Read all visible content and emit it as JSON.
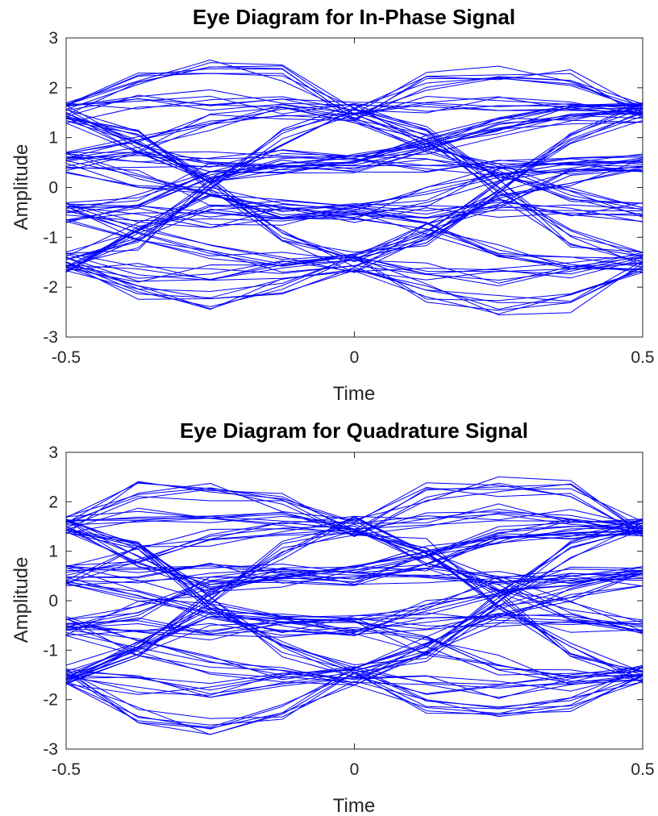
{
  "chart_data": [
    {
      "type": "line",
      "title": "Eye Diagram for In-Phase Signal",
      "xlabel": "Time",
      "ylabel": "Amplitude",
      "xlim": [
        -0.5,
        0.5
      ],
      "ylim": [
        -3,
        3
      ],
      "xticks": [
        -0.5,
        0,
        0.5
      ],
      "xtick_labels": [
        "-0.5",
        "0",
        "0.5"
      ],
      "yticks": [
        -3,
        -2,
        -1,
        0,
        1,
        2,
        3
      ],
      "ytick_labels": [
        "-3",
        "-2",
        "-1",
        "0",
        "1",
        "2",
        "3"
      ],
      "grid": false,
      "trace_color": "#0000ff",
      "x": [
        -0.5,
        -0.375,
        -0.25,
        -0.125,
        0,
        0.125,
        0.25,
        0.375,
        0.5
      ],
      "series": [
        {
          "values": [
            1.5,
            2.15,
            2.45,
            2.25,
            1.5,
            2.15,
            2.3,
            2.2,
            1.5
          ]
        },
        {
          "values": [
            1.5,
            1.7,
            1.75,
            1.65,
            1.5,
            1.7,
            1.75,
            1.65,
            1.5
          ]
        },
        {
          "values": [
            1.5,
            1.05,
            0.0,
            -1.0,
            -1.5,
            -1.05,
            0.0,
            1.05,
            1.5
          ]
        },
        {
          "values": [
            0.5,
            0.9,
            1.3,
            1.5,
            1.5,
            0.9,
            0.3,
            -0.2,
            -0.5
          ]
        },
        {
          "values": [
            0.5,
            0.55,
            0.6,
            0.55,
            0.5,
            0.45,
            0.4,
            0.45,
            0.5
          ]
        },
        {
          "values": [
            0.5,
            0.2,
            -0.2,
            -0.45,
            -0.5,
            -0.2,
            0.3,
            0.5,
            0.5
          ]
        },
        {
          "values": [
            -0.5,
            -0.2,
            0.3,
            0.5,
            0.5,
            0.8,
            1.2,
            1.45,
            1.5
          ]
        },
        {
          "values": [
            -0.5,
            -0.55,
            -0.6,
            -0.55,
            -0.5,
            -0.45,
            -0.4,
            -0.45,
            -0.5
          ]
        },
        {
          "values": [
            -0.5,
            -0.9,
            -1.3,
            -1.5,
            -1.5,
            -0.9,
            -0.3,
            0.2,
            0.5
          ]
        },
        {
          "values": [
            -1.5,
            -1.05,
            0.0,
            1.0,
            1.5,
            1.05,
            0.0,
            -1.05,
            -1.5
          ]
        },
        {
          "values": [
            -1.5,
            -1.7,
            -1.75,
            -1.65,
            -1.5,
            -1.7,
            -1.8,
            -1.65,
            -1.5
          ]
        },
        {
          "values": [
            -1.5,
            -2.05,
            -2.25,
            -2.0,
            -1.5,
            -2.1,
            -2.35,
            -2.3,
            -1.5
          ]
        },
        {
          "values": [
            1.5,
            0.9,
            0.3,
            0.45,
            0.5,
            0.9,
            1.3,
            1.5,
            1.5
          ]
        },
        {
          "values": [
            -1.5,
            -0.9,
            -0.3,
            -0.45,
            -0.5,
            -0.9,
            -1.3,
            -1.5,
            -1.5
          ]
        }
      ]
    },
    {
      "type": "line",
      "title": "Eye Diagram for Quadrature Signal",
      "xlabel": "Time",
      "ylabel": "Amplitude",
      "xlim": [
        -0.5,
        0.5
      ],
      "ylim": [
        -3,
        3
      ],
      "xticks": [
        -0.5,
        0,
        0.5
      ],
      "xtick_labels": [
        "-0.5",
        "0",
        "0.5"
      ],
      "yticks": [
        -3,
        -2,
        -1,
        0,
        1,
        2,
        3
      ],
      "ytick_labels": [
        "-3",
        "-2",
        "-1",
        "0",
        "1",
        "2",
        "3"
      ],
      "grid": false,
      "trace_color": "#0000ff",
      "x": [
        -0.5,
        -0.375,
        -0.25,
        -0.125,
        0,
        0.125,
        0.25,
        0.375,
        0.5
      ],
      "series": [
        {
          "values": [
            1.5,
            2.25,
            2.2,
            2.0,
            1.5,
            2.2,
            2.3,
            2.25,
            1.5
          ]
        },
        {
          "values": [
            1.5,
            1.7,
            1.75,
            1.65,
            1.5,
            1.7,
            1.75,
            1.65,
            1.5
          ]
        },
        {
          "values": [
            1.5,
            1.05,
            0.0,
            -1.0,
            -1.5,
            -1.05,
            0.0,
            1.05,
            1.5
          ]
        },
        {
          "values": [
            0.5,
            0.9,
            1.3,
            1.5,
            1.5,
            0.9,
            0.3,
            -0.2,
            -0.5
          ]
        },
        {
          "values": [
            0.5,
            0.55,
            0.6,
            0.55,
            0.5,
            0.45,
            0.4,
            0.45,
            0.5
          ]
        },
        {
          "values": [
            0.5,
            0.2,
            -0.2,
            -0.45,
            -0.5,
            -0.2,
            0.3,
            0.5,
            0.5
          ]
        },
        {
          "values": [
            -0.5,
            -0.2,
            0.3,
            0.5,
            0.5,
            0.8,
            1.2,
            1.45,
            1.5
          ]
        },
        {
          "values": [
            -0.5,
            -0.55,
            -0.6,
            -0.55,
            -0.5,
            -0.45,
            -0.4,
            -0.45,
            -0.5
          ]
        },
        {
          "values": [
            -0.5,
            -0.9,
            -1.3,
            -1.5,
            -1.5,
            -0.9,
            -0.3,
            0.2,
            0.5
          ]
        },
        {
          "values": [
            -1.5,
            -1.05,
            0.0,
            1.0,
            1.5,
            1.05,
            0.0,
            -1.05,
            -1.5
          ]
        },
        {
          "values": [
            -1.5,
            -1.7,
            -1.75,
            -1.65,
            -1.5,
            -1.7,
            -1.8,
            -1.65,
            -1.5
          ]
        },
        {
          "values": [
            -1.5,
            -2.3,
            -2.5,
            -2.25,
            -1.5,
            -2.1,
            -2.2,
            -2.15,
            -1.5
          ]
        },
        {
          "values": [
            1.5,
            0.9,
            0.3,
            0.45,
            0.5,
            0.9,
            1.3,
            1.5,
            1.5
          ]
        },
        {
          "values": [
            -1.5,
            -0.9,
            -0.3,
            -0.45,
            -0.5,
            -0.9,
            -1.3,
            -1.5,
            -1.5
          ]
        }
      ]
    }
  ]
}
